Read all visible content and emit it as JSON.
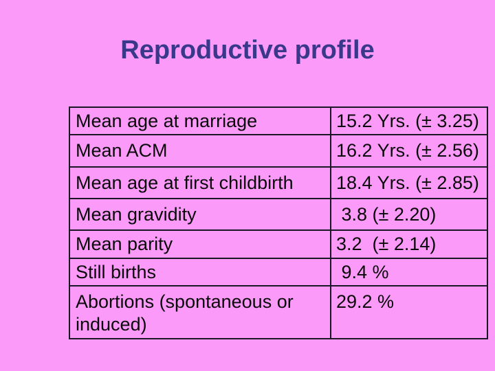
{
  "slide": {
    "title": "Reproductive profile",
    "colors": {
      "background": "#fc9afa",
      "title": "#3a388a",
      "table_border": "#1a1626",
      "table_text": "#0a0a0a"
    }
  },
  "table": {
    "rows": [
      {
        "label": "Mean age at marriage",
        "value": "15.2 Yrs. (± 3.25)"
      },
      {
        "label": "Mean ACM",
        "value": "16.2 Yrs. (± 2.56)"
      },
      {
        "label": "Mean age at first childbirth",
        "value": "18.4 Yrs. (± 2.85)"
      },
      {
        "label": "Mean gravidity",
        "value": " 3.8 (± 2.20)"
      },
      {
        "label": "Mean parity",
        "value": "3.2  (± 2.14)"
      },
      {
        "label": "Still births",
        "value": " 9.4 %"
      },
      {
        "label": "Abortions (spontaneous or induced)",
        "value": "29.2 %"
      }
    ]
  }
}
